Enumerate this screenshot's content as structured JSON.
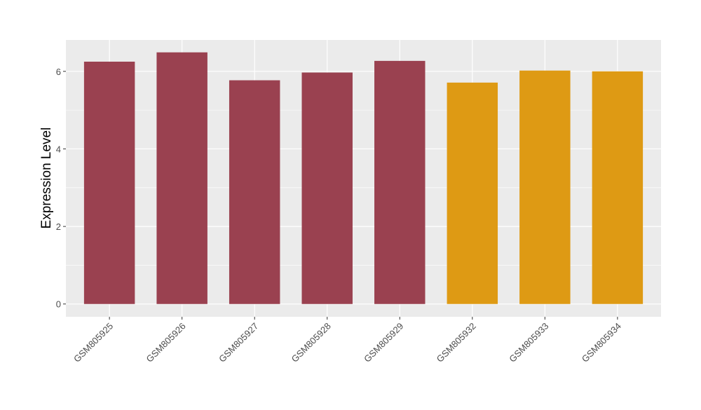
{
  "chart_data": {
    "type": "bar",
    "title": "",
    "xlabel": "",
    "ylabel": "Expression Level",
    "categories": [
      "GSM805925",
      "GSM805926",
      "GSM805927",
      "GSM805928",
      "GSM805929",
      "GSM805932",
      "GSM805933",
      "GSM805934"
    ],
    "values": [
      6.25,
      6.49,
      5.77,
      5.97,
      6.27,
      5.71,
      6.02,
      6.0
    ],
    "bar_colors": [
      "#9a4150",
      "#9a4150",
      "#9a4150",
      "#9a4150",
      "#9a4150",
      "#de9a14",
      "#de9a14",
      "#de9a14"
    ],
    "ylim": [
      -0.33,
      6.81
    ],
    "yticks": [
      0,
      2,
      4,
      6
    ],
    "grid": true,
    "panel_background": "#ebebeb",
    "legend": "none"
  }
}
